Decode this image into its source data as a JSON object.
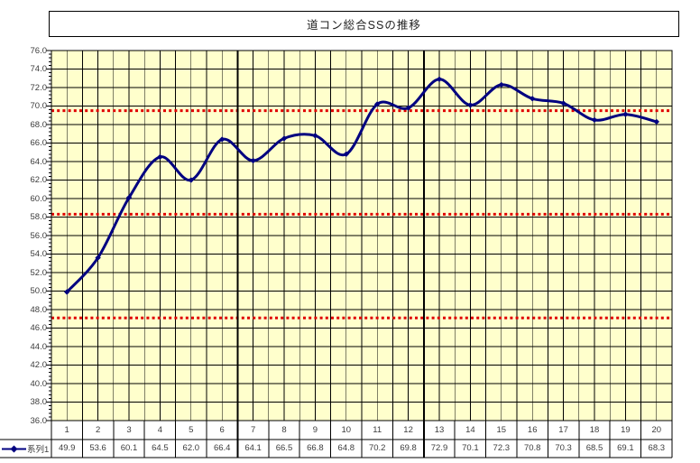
{
  "title": "道コン総合SSの推移",
  "legend": {
    "series_label": "系列1"
  },
  "axis": {
    "y_labels": [
      "76.0",
      "74.0",
      "72.0",
      "70.0",
      "68.0",
      "66.0",
      "64.0",
      "62.0",
      "60.0",
      "58.0",
      "56.0",
      "54.0",
      "52.0",
      "50.0",
      "48.0",
      "46.0",
      "44.0",
      "42.0",
      "40.0",
      "38.0",
      "36.0"
    ]
  },
  "table": {
    "categories": [
      "1",
      "2",
      "3",
      "4",
      "5",
      "6",
      "7",
      "8",
      "9",
      "10",
      "11",
      "12",
      "13",
      "14",
      "15",
      "16",
      "17",
      "18",
      "19",
      "20"
    ],
    "values": [
      "49.9",
      "53.6",
      "60.1",
      "64.5",
      "62.0",
      "66.4",
      "64.1",
      "66.5",
      "66.8",
      "64.8",
      "70.2",
      "69.8",
      "72.9",
      "70.1",
      "72.3",
      "70.8",
      "70.3",
      "68.5",
      "69.1",
      "68.3"
    ]
  },
  "chart_data": {
    "type": "line",
    "title": "道コン総合SSの推移",
    "categories": [
      1,
      2,
      3,
      4,
      5,
      6,
      7,
      8,
      9,
      10,
      11,
      12,
      13,
      14,
      15,
      16,
      17,
      18,
      19,
      20
    ],
    "series": [
      {
        "name": "系列1",
        "values": [
          49.9,
          53.6,
          60.1,
          64.5,
          62.0,
          66.4,
          64.1,
          66.5,
          66.8,
          64.8,
          70.2,
          69.8,
          72.9,
          70.1,
          72.3,
          70.8,
          70.3,
          68.5,
          69.1,
          68.3
        ],
        "color": "#000080",
        "marker": "diamond",
        "smooth": true
      }
    ],
    "reference_lines": [
      {
        "value": 69.5,
        "color": "#e00000",
        "style": "dotted"
      },
      {
        "value": 58.3,
        "color": "#e00000",
        "style": "dotted"
      },
      {
        "value": 47.1,
        "color": "#e00000",
        "style": "dotted"
      }
    ],
    "separators_after_categories": [
      6,
      12
    ],
    "ylim": [
      36,
      76
    ],
    "y_major_step": 2,
    "y_minor_step": 0.4,
    "x_minor_per_category": 2,
    "plot_bg": "#FFFFCC",
    "grid_color": "#000000",
    "grid": true,
    "legend_position": "bottom-left",
    "data_table_shown": true,
    "xlabel": "",
    "ylabel": ""
  }
}
